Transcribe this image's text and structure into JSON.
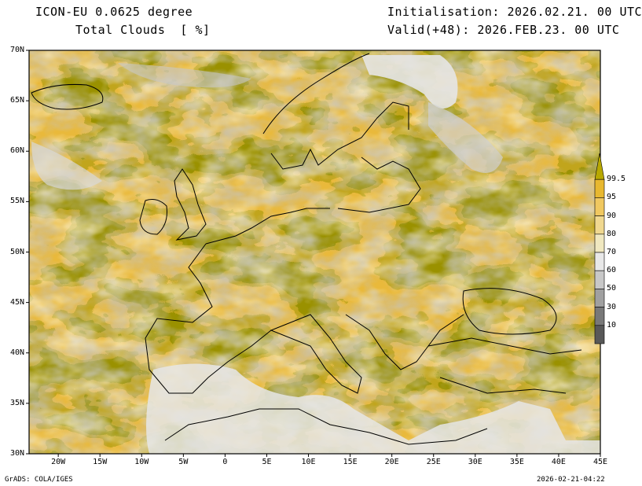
{
  "header": {
    "model": "ICON-EU 0.0625 degree",
    "variable": "Total Clouds  [ %]",
    "init": "Initialisation: 2026.02.21. 00 UTC",
    "valid": "Valid(+48): 2026.FEB.23. 00 UTC"
  },
  "footer": {
    "software": "GrADS: COLA/IGES",
    "timestamp": "2026-02-21-04:22"
  },
  "axes": {
    "lat_labels": [
      "70N",
      "65N",
      "60N",
      "55N",
      "50N",
      "45N",
      "40N",
      "35N",
      "30N"
    ],
    "lon_labels": [
      "20W",
      "15W",
      "10W",
      "5W",
      "0",
      "5E",
      "10E",
      "15E",
      "20E",
      "25E",
      "30E",
      "35E",
      "40E",
      "45E"
    ],
    "lat_range": [
      30,
      70
    ],
    "lon_range": [
      -23.5,
      45
    ]
  },
  "colorbar": {
    "labels": [
      "99.5",
      "95",
      "90",
      "80",
      "70",
      "60",
      "50",
      "30",
      "10"
    ],
    "colors": [
      "#b8a800",
      "#e8b830",
      "#f0c860",
      "#f0d890",
      "#f0e8c0",
      "#e8e8e8",
      "#c8c8c8",
      "#a0a0a0",
      "#787878",
      "#585858"
    ]
  },
  "colors": {
    "overcast": "#9a9100",
    "sea_clear": "#e6e6e6",
    "coast": "#000000"
  }
}
